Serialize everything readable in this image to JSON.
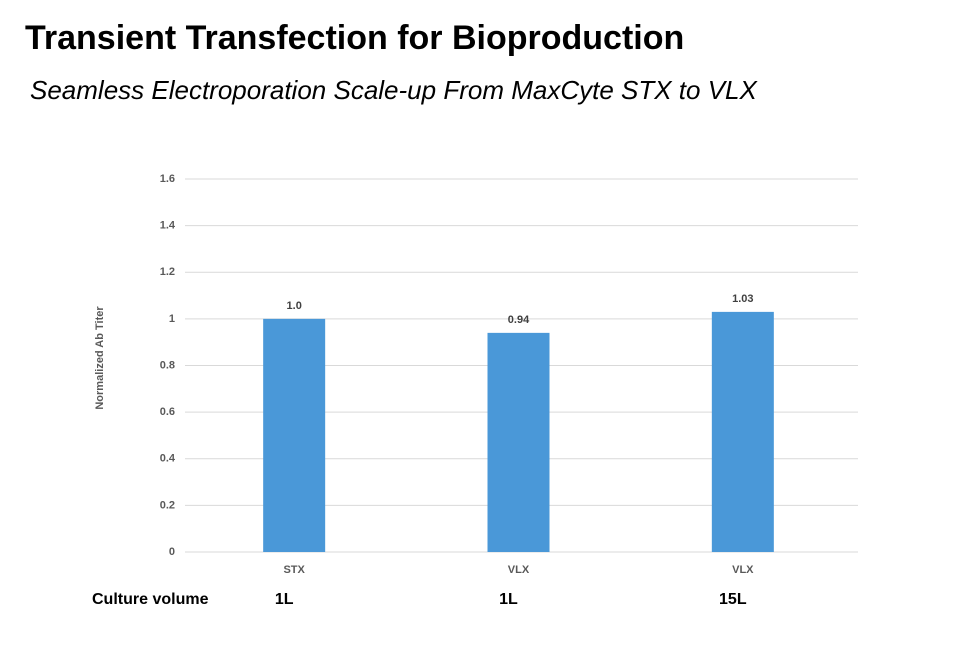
{
  "chart_data": {
    "type": "bar",
    "title": "Transient Transfection for Bioproduction",
    "subtitle": "Seamless Electroporation Scale-up From MaxCyte STX to VLX",
    "y_label": "Normalized Ab Titer",
    "categories": [
      "STX",
      "VLX",
      "VLX"
    ],
    "values": [
      1.0,
      0.94,
      1.03
    ],
    "value_labels": [
      "1.0",
      "0.94",
      "1.03"
    ],
    "color": "#4a98d8",
    "ylim": [
      0,
      1.6
    ],
    "yticks": [
      0,
      0.2,
      0.4,
      0.6,
      0.8,
      1,
      1.2,
      1.4,
      1.6
    ],
    "grid": true,
    "culture_volume": {
      "label": "Culture volume",
      "entries": [
        "1L",
        "1L",
        "15L"
      ]
    }
  }
}
